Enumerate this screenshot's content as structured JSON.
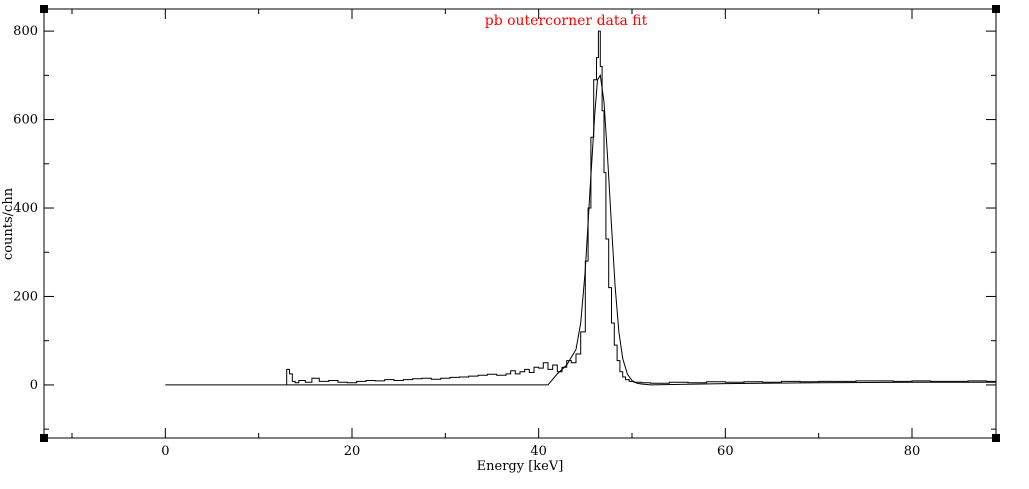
{
  "chart_data": {
    "type": "line",
    "title": "pb outercorner data fit",
    "title_color": "#ff0000",
    "xlabel": "Energy [keV]",
    "ylabel": "counts/chn",
    "xlim": [
      -13,
      89
    ],
    "ylim": [
      -120,
      850
    ],
    "x_ticks": [
      0,
      20,
      40,
      60,
      80
    ],
    "x_tick_labels": [
      "0",
      "20",
      "40",
      "60",
      "80"
    ],
    "y_ticks": [
      0,
      200,
      400,
      600,
      800
    ],
    "y_tick_labels": [
      "0",
      "200",
      "400",
      "600",
      "800"
    ],
    "grid": false,
    "legend": "none",
    "series": [
      {
        "style": "histogram",
        "color": "#000000",
        "x": [
          13.0,
          13.3,
          13.6,
          13.9,
          14.3,
          15.0,
          15.7,
          16.5,
          17.5,
          18.5,
          19.5,
          20.5,
          21.5,
          22.5,
          23.5,
          24.5,
          25.5,
          26.5,
          27.5,
          28.5,
          29.5,
          30.5,
          31.5,
          32.5,
          33.5,
          34.5,
          35.5,
          36.5,
          37.0,
          37.5,
          38.0,
          38.5,
          39.0,
          39.5,
          40.0,
          40.5,
          41.0,
          41.5,
          42.0,
          42.5,
          43.0,
          43.5,
          44.0,
          44.5,
          45.0,
          45.3,
          45.6,
          45.9,
          46.2,
          46.4,
          46.6,
          46.8,
          47.0,
          47.2,
          47.5,
          47.8,
          48.1,
          48.4,
          48.7,
          49.0,
          49.3,
          49.7,
          50.2,
          51.0,
          52.0,
          54.0,
          56.0,
          58.0,
          60.0,
          62.0,
          64.0,
          66.0,
          68.0,
          70.0,
          72.0,
          74.0,
          76.0,
          78.0,
          80.0,
          82.0,
          84.0,
          86.0,
          88.0,
          89.0
        ],
        "y": [
          35,
          25,
          8,
          5,
          10,
          6,
          15,
          8,
          10,
          6,
          5,
          8,
          10,
          9,
          12,
          10,
          12,
          14,
          15,
          13,
          15,
          17,
          18,
          20,
          22,
          24,
          22,
          25,
          32,
          25,
          30,
          35,
          28,
          40,
          38,
          50,
          35,
          45,
          30,
          40,
          55,
          50,
          70,
          120,
          280,
          400,
          560,
          690,
          740,
          800,
          720,
          620,
          480,
          330,
          220,
          140,
          90,
          55,
          30,
          18,
          12,
          8,
          6,
          5,
          4,
          6,
          5,
          7,
          6,
          7,
          6,
          8,
          7,
          8,
          8,
          9,
          9,
          8,
          9,
          8,
          8,
          9,
          8,
          7
        ]
      },
      {
        "style": "fit",
        "color": "#000000",
        "x": [
          0,
          41.0,
          42.0,
          43.0,
          44.0,
          44.5,
          45.0,
          45.5,
          46.0,
          46.3,
          46.6,
          47.0,
          47.4,
          47.8,
          48.2,
          48.6,
          49.0,
          49.5,
          50.0,
          50.5,
          51.0,
          52.0,
          60.0,
          70.0,
          80.0,
          89.0
        ],
        "y": [
          0,
          0,
          25,
          45,
          80,
          140,
          260,
          440,
          610,
          690,
          700,
          640,
          510,
          360,
          220,
          120,
          60,
          25,
          10,
          4,
          2,
          0,
          3,
          5,
          6,
          6
        ]
      }
    ]
  }
}
